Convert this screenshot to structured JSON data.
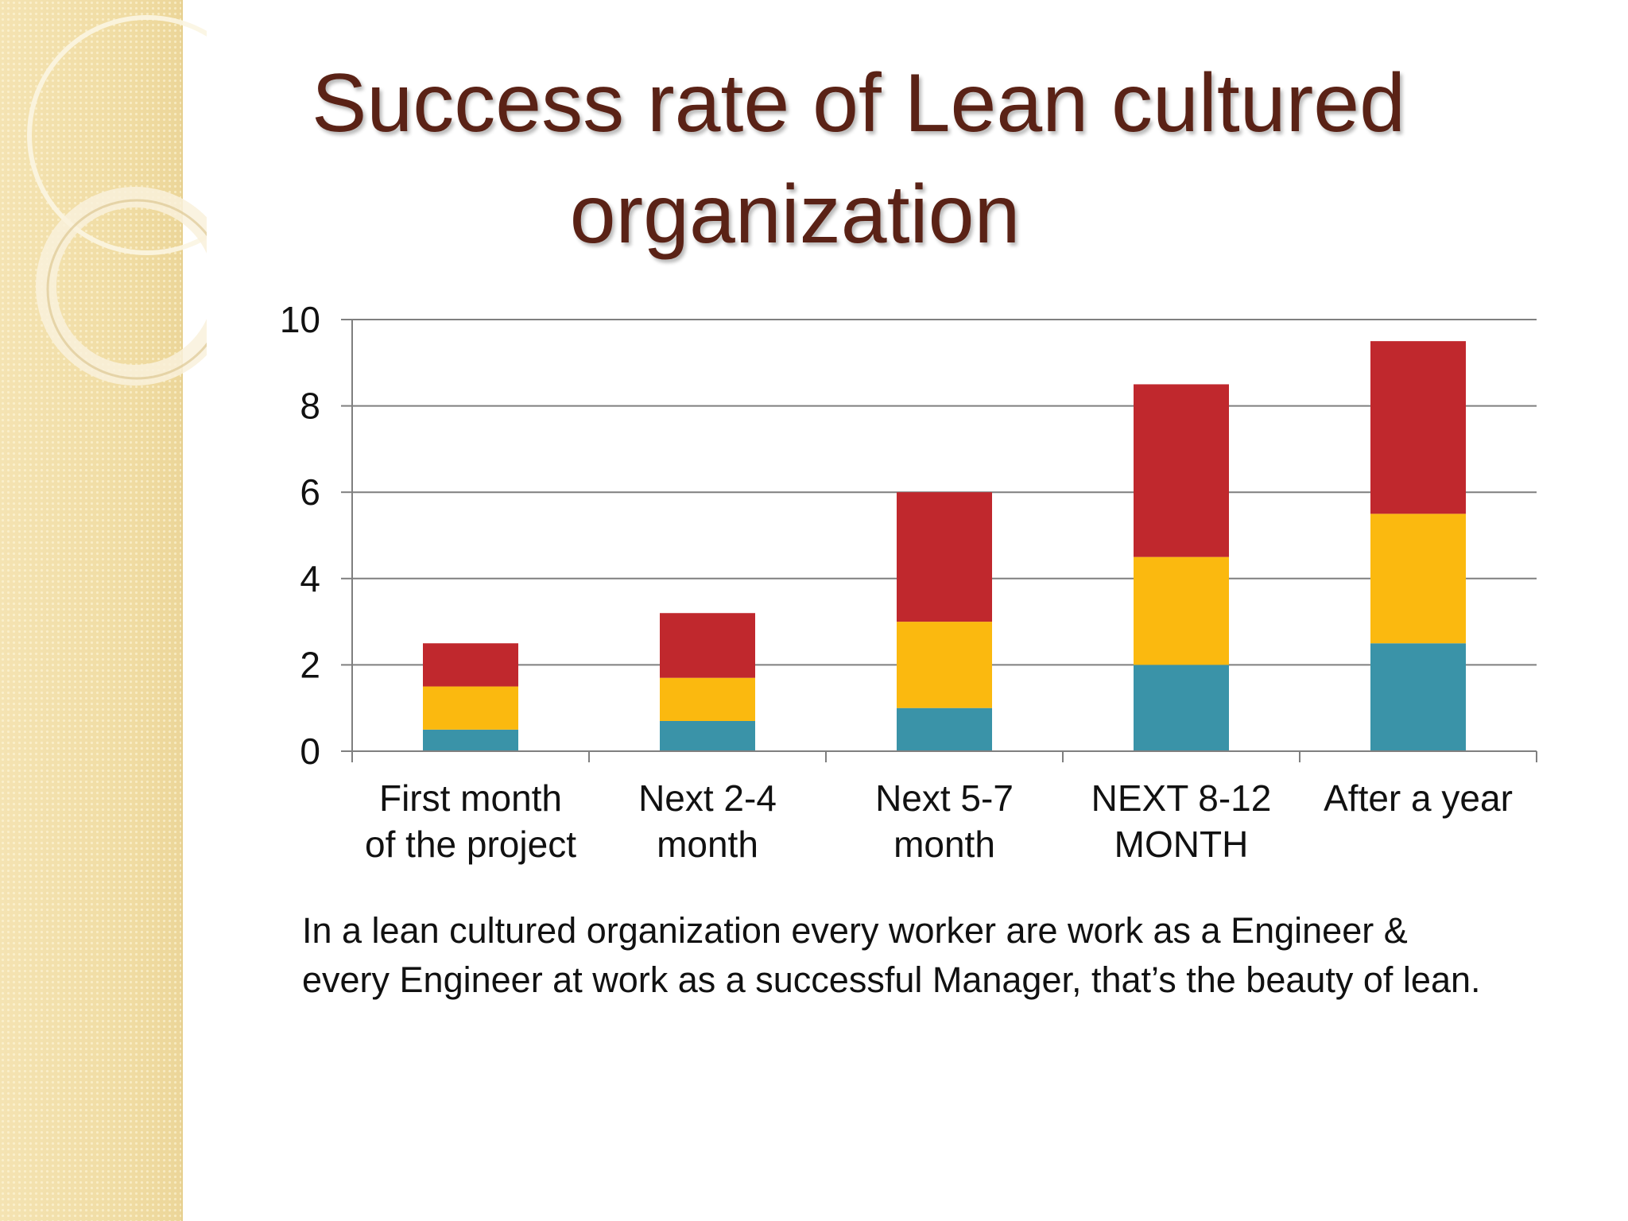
{
  "slide": {
    "title_line1": "Success rate of Lean cultured",
    "title_line2": "organization",
    "caption": "In a lean cultured organization every worker are work as a Engineer & every Engineer at work as a successful  Manager, that’s the beauty of lean."
  },
  "colors": {
    "title": "#5a2216",
    "series": [
      "#3a93a8",
      "#fbb90f",
      "#c0282d"
    ],
    "grid": "#7f7f7f"
  },
  "chart_data": {
    "type": "bar",
    "stacked": true,
    "categories": [
      [
        "First month",
        "of the project"
      ],
      [
        "Next 2-4",
        "month"
      ],
      [
        "Next 5-7",
        "month"
      ],
      [
        "NEXT 8-12",
        "MONTH"
      ],
      [
        "After a year"
      ]
    ],
    "series": [
      {
        "values": [
          0.5,
          0.7,
          1,
          2,
          2.5
        ]
      },
      {
        "values": [
          1,
          1,
          2,
          2.5,
          3
        ]
      },
      {
        "values": [
          1,
          1.5,
          3,
          4,
          4
        ]
      }
    ],
    "ylim": [
      0,
      10
    ],
    "yticks": [
      0,
      2,
      4,
      6,
      8,
      10
    ],
    "grid": true,
    "legend": "none"
  }
}
